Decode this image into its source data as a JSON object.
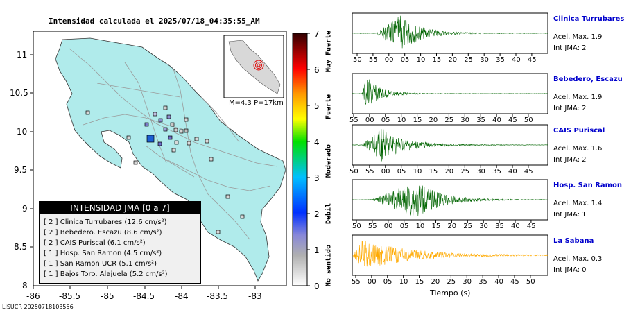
{
  "map": {
    "title": "Intensidad calculada el 2025/07/18_04:35:55_AM",
    "footer_id": "LISUCR 20250718103556",
    "lat_ticks": [
      "11",
      "10.5",
      "10",
      "9.5",
      "9",
      "8.5",
      "8"
    ],
    "lon_ticks": [
      "-86",
      "-85.5",
      "-85",
      "-84.5",
      "-84",
      "-83.5",
      "-83"
    ],
    "inset_caption": "M=4.3 P=17km",
    "legend": {
      "title": "INTENSIDAD JMA [0 a 7]",
      "items": [
        {
          "level": "[ 2 ]",
          "text": "Clinica Turrubares (12.6 cm/s²)"
        },
        {
          "level": "[ 2 ]",
          "text": "Bebedero. Escazu (8.6 cm/s²)"
        },
        {
          "level": "[ 2 ]",
          "text": "CAIS Puriscal (6.1 cm/s²)"
        },
        {
          "level": "[ 1 ]",
          "text": "Hosp. San Ramon (4.5 cm/s²)"
        },
        {
          "level": "[ 1 ]",
          "text": "San Ramon UCR (5.1 cm/s²)"
        },
        {
          "level": "[ 1 ]",
          "text": "Bajos Toro. Alajuela (5.2 cm/s²)"
        }
      ]
    }
  },
  "colorbar": {
    "ticks": [
      "7",
      "6",
      "5",
      "4",
      "3",
      "2",
      "1",
      "0"
    ],
    "labels": [
      "Muy Fuerte",
      "Fuerte",
      "Moderado",
      "Debil",
      "No sentido"
    ]
  },
  "waveforms": {
    "xlabel": "Tiempo (s)",
    "stations": [
      {
        "name": "Clinica Turrubares",
        "acel": "Acel. Max. 1.9",
        "int": "Int JMA: 2",
        "color": "#006400",
        "ticks": [
          "50",
          "55",
          "00",
          "05",
          "10",
          "15",
          "20",
          "25",
          "30",
          "35",
          "40",
          "45"
        ]
      },
      {
        "name": "Bebedero, Escazu",
        "acel": "Acel. Max. 1.9",
        "int": "Int JMA: 2",
        "color": "#006400",
        "ticks": [
          "55",
          "00",
          "05",
          "10",
          "15",
          "20",
          "25",
          "30",
          "35",
          "40",
          "45",
          "50"
        ]
      },
      {
        "name": "CAIS Puriscal",
        "acel": "Acel. Max. 1.6",
        "int": "Int JMA: 2",
        "color": "#006400",
        "ticks": [
          "50",
          "55",
          "00",
          "05",
          "10",
          "15",
          "20",
          "25",
          "30",
          "35",
          "40",
          "45"
        ]
      },
      {
        "name": "Hosp. San Ramon",
        "acel": "Acel. Max. 1.4",
        "int": "Int JMA: 1",
        "color": "#006400",
        "ticks": [
          "50",
          "55",
          "00",
          "05",
          "10",
          "15",
          "20",
          "25",
          "30",
          "35",
          "40",
          "45"
        ]
      },
      {
        "name": "La Sabana",
        "acel": "Acel. Max. 0.3",
        "int": "Int JMA: 0",
        "color": "#ffaa00",
        "ticks": [
          "55",
          "00",
          "05",
          "10",
          "15",
          "20",
          "25",
          "30",
          "35",
          "40",
          "45",
          "50"
        ]
      }
    ]
  }
}
